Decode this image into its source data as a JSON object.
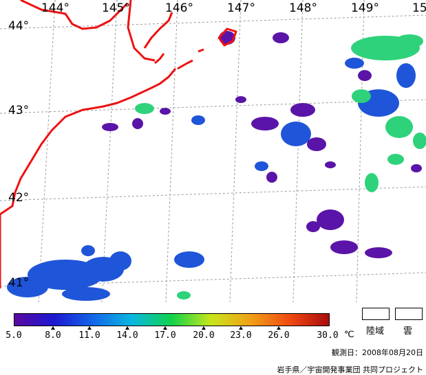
{
  "map": {
    "longitude_labels": [
      "144°",
      "145°",
      "146°",
      "147°",
      "148°",
      "149°",
      "15"
    ],
    "latitude_labels": [
      "44°",
      "43°",
      "42°",
      "41°"
    ],
    "colors": {
      "coastline": "#ee1111",
      "graticule": "#9a9a9a",
      "sst_cold": "#5a14a8",
      "sst_blue": "#1f55d8",
      "sst_green": "#2ed27a"
    }
  },
  "colorbar": {
    "tick_labels": [
      "5.0",
      "8.0",
      "11.0",
      "14.0",
      "17.0",
      "20.0",
      "23.0",
      "26.0",
      "30.0"
    ],
    "unit": "℃",
    "gradient_colors": [
      "#5a0aa0",
      "#1c18d0",
      "#1466e8",
      "#0ab8e0",
      "#12d24a",
      "#c8e61a",
      "#f0a018",
      "#f04a12",
      "#a80c0c"
    ]
  },
  "legend": {
    "land_label": "陸域",
    "cloud_label": "雲"
  },
  "footer": {
    "observation_date": "観測日：2008年08月20日",
    "credit": "岩手県／宇宙開発事業団 共同プロジェクト"
  }
}
